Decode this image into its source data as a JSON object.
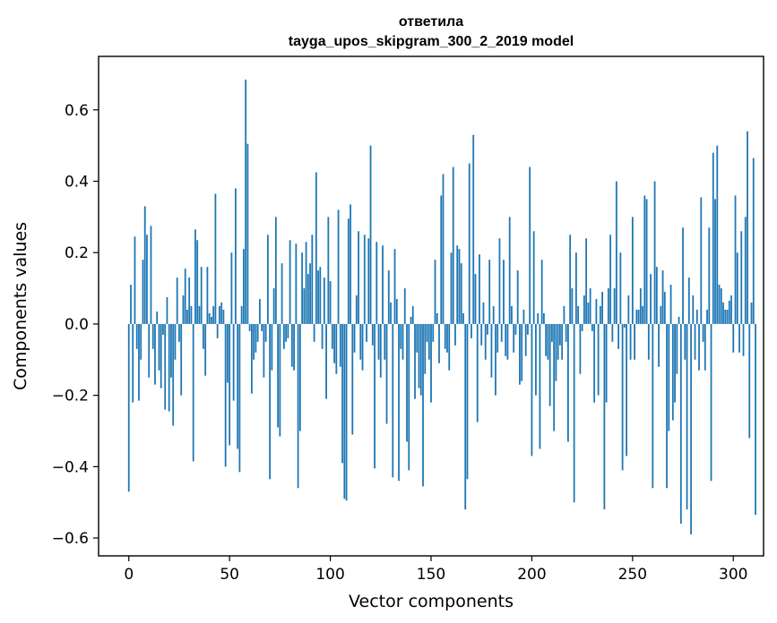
{
  "chart_data": {
    "type": "bar",
    "title": [
      "ответила",
      "tayga_upos_skipgram_300_2_2019 model"
    ],
    "xlabel": "Vector components",
    "ylabel": "Components values",
    "xlim": [
      -15,
      315
    ],
    "ylim": [
      -0.65,
      0.75
    ],
    "xticks": [
      0,
      50,
      100,
      150,
      200,
      250,
      300
    ],
    "yticks": [
      -0.6,
      -0.4,
      -0.2,
      0.0,
      0.2,
      0.4,
      0.6
    ],
    "ytick_labels": [
      "−0.6",
      "−0.4",
      "−0.2",
      "0.0",
      "0.2",
      "0.4",
      "0.6"
    ],
    "bar_color": "#1f77b4",
    "grid": false,
    "legend": "none",
    "values": [
      -0.47,
      0.11,
      -0.22,
      0.245,
      -0.07,
      -0.215,
      -0.1,
      0.18,
      0.33,
      0.25,
      -0.15,
      0.275,
      -0.07,
      -0.17,
      0.035,
      -0.13,
      -0.18,
      -0.03,
      -0.24,
      0.075,
      -0.245,
      -0.15,
      -0.285,
      -0.1,
      0.13,
      -0.05,
      -0.2,
      0.08,
      0.155,
      0.04,
      0.13,
      0.05,
      -0.385,
      0.265,
      0.235,
      0.05,
      0.16,
      -0.07,
      -0.145,
      0.16,
      0.03,
      0.02,
      0.05,
      0.365,
      -0.04,
      0.05,
      0.06,
      0.04,
      -0.4,
      -0.165,
      -0.34,
      0.2,
      -0.215,
      0.38,
      -0.35,
      -0.415,
      0.05,
      0.21,
      0.685,
      0.505,
      -0.02,
      -0.195,
      -0.1,
      -0.08,
      -0.05,
      0.07,
      -0.02,
      -0.15,
      -0.05,
      0.25,
      -0.435,
      -0.13,
      0.1,
      0.3,
      -0.29,
      -0.315,
      0.17,
      -0.07,
      -0.05,
      -0.04,
      0.235,
      -0.12,
      -0.13,
      0.225,
      -0.46,
      -0.3,
      0.2,
      0.1,
      0.23,
      0.14,
      0.17,
      0.25,
      -0.05,
      0.425,
      0.15,
      0.16,
      -0.07,
      0.13,
      -0.21,
      0.3,
      0.12,
      -0.07,
      -0.11,
      -0.14,
      0.32,
      -0.12,
      -0.39,
      -0.49,
      -0.495,
      0.295,
      0.335,
      -0.31,
      -0.08,
      0.08,
      0.26,
      -0.1,
      -0.13,
      0.25,
      -0.05,
      0.24,
      0.5,
      -0.06,
      -0.405,
      0.23,
      -0.1,
      -0.15,
      0.22,
      -0.1,
      -0.28,
      0.15,
      0.06,
      -0.43,
      0.21,
      0.07,
      -0.44,
      -0.07,
      -0.1,
      0.1,
      -0.33,
      -0.41,
      0.02,
      0.05,
      -0.21,
      -0.08,
      -0.18,
      -0.2,
      -0.455,
      -0.14,
      -0.05,
      -0.1,
      -0.22,
      -0.05,
      0.18,
      0.03,
      -0.11,
      0.36,
      0.42,
      -0.07,
      -0.08,
      -0.13,
      0.2,
      0.44,
      -0.06,
      0.22,
      0.21,
      0.17,
      0.03,
      -0.52,
      -0.435,
      0.45,
      -0.04,
      0.53,
      0.14,
      -0.275,
      0.195,
      -0.06,
      0.06,
      -0.1,
      -0.03,
      0.18,
      -0.15,
      0.05,
      -0.2,
      -0.08,
      0.24,
      -0.05,
      0.18,
      -0.09,
      -0.1,
      0.3,
      0.05,
      -0.08,
      -0.03,
      0.15,
      -0.17,
      -0.16,
      0.04,
      -0.09,
      -0.03,
      0.44,
      -0.37,
      0.26,
      -0.2,
      0.03,
      -0.35,
      0.18,
      0.03,
      -0.09,
      -0.1,
      -0.23,
      -0.05,
      -0.3,
      -0.16,
      -0.1,
      -0.06,
      -0.1,
      0.05,
      -0.05,
      -0.33,
      0.25,
      0.1,
      -0.5,
      0.2,
      0.05,
      -0.14,
      -0.02,
      0.08,
      0.24,
      0.06,
      0.1,
      -0.02,
      -0.22,
      0.07,
      -0.2,
      0.05,
      0.09,
      -0.52,
      -0.22,
      0.1,
      0.25,
      -0.05,
      0.1,
      0.4,
      -0.07,
      0.2,
      -0.41,
      -0.01,
      -0.37,
      0.08,
      -0.1,
      0.3,
      -0.1,
      0.04,
      0.04,
      0.1,
      0.05,
      0.36,
      0.35,
      -0.1,
      0.14,
      -0.46,
      0.4,
      0.16,
      -0.12,
      0.05,
      0.15,
      0.09,
      -0.46,
      -0.3,
      0.11,
      -0.27,
      -0.22,
      -0.14,
      0.02,
      -0.56,
      0.27,
      -0.1,
      -0.52,
      0.13,
      -0.59,
      0.08,
      -0.1,
      0.04,
      -0.13,
      0.355,
      -0.05,
      -0.13,
      0.04,
      0.27,
      -0.44,
      0.48,
      0.35,
      0.5,
      0.11,
      0.1,
      0.06,
      0.04,
      0.04,
      0.065,
      0.08,
      -0.08,
      0.36,
      0.2,
      -0.08,
      0.26,
      -0.09,
      0.3,
      0.54,
      -0.32,
      0.06,
      0.465,
      -0.535
    ]
  }
}
